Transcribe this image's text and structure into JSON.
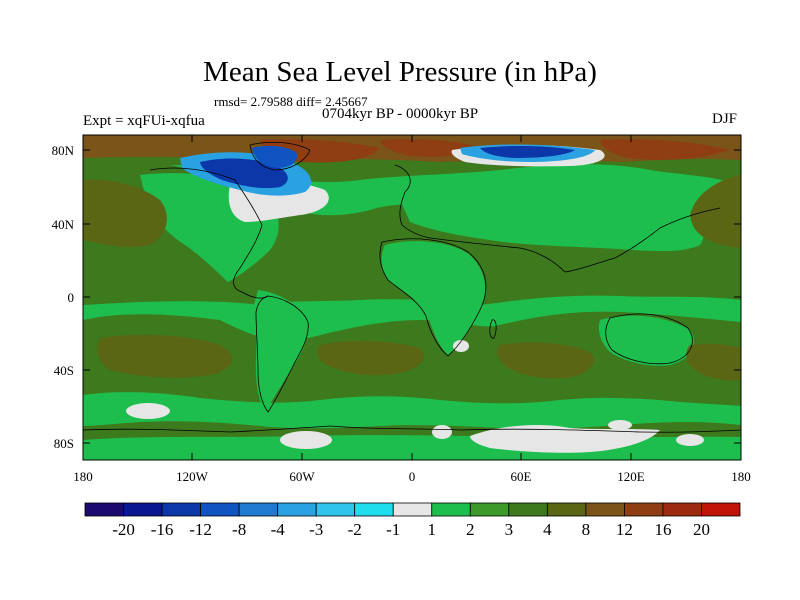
{
  "title": "Mean Sea Level Pressure (in hPa)",
  "stats": "rmsd= 2.79588 diff= 2.45667",
  "period": "0704kyr BP - 0000kyr BP",
  "experiment": "Expt = xqFUi-xqfua",
  "season": "DJF",
  "map": {
    "lat_labels": [
      "80N",
      "40N",
      "0",
      "40S",
      "80S"
    ],
    "lon_labels": [
      "180",
      "120W",
      "60W",
      "0",
      "60E",
      "120E",
      "180"
    ],
    "background_color": "#3d7a1e"
  },
  "colorbar": {
    "colors": [
      "#1d0a6e",
      "#0a1890",
      "#0c37a8",
      "#0f54c0",
      "#1f7ad0",
      "#2aa2e2",
      "#30c4ec",
      "#20ddee",
      "#e6e6e6",
      "#1ebe4e",
      "#3c9a2a",
      "#3d7a1e",
      "#5a6614",
      "#7a5418",
      "#8e3e12",
      "#9c2a0e",
      "#c01408"
    ],
    "labels": [
      "-20",
      "-16",
      "-12",
      "-8",
      "-4",
      "-3",
      "-2",
      "-1",
      "1",
      "2",
      "3",
      "4",
      "8",
      "12",
      "16",
      "20"
    ]
  }
}
